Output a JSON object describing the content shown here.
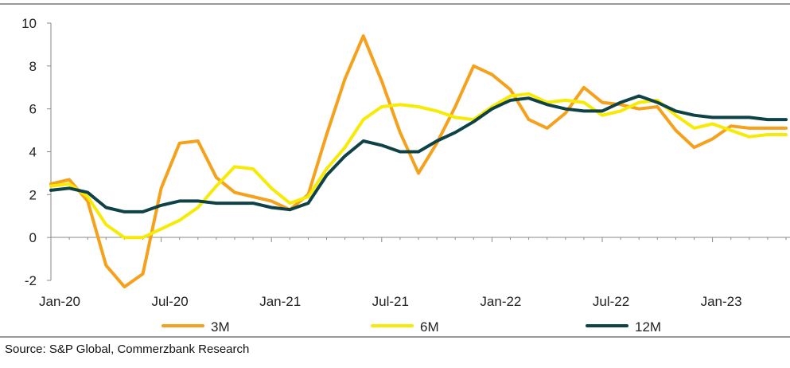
{
  "chart_data": {
    "type": "line",
    "title": "",
    "xlabel": "",
    "ylabel": "",
    "ylim": [
      -2,
      10
    ],
    "yticks": [
      -2,
      0,
      2,
      4,
      6,
      8,
      10
    ],
    "x_start": "Jan-20",
    "x_ticks": [
      "Jan-20",
      "Jul-20",
      "Jan-21",
      "Jul-21",
      "Jan-22",
      "Jul-22",
      "Jan-23"
    ],
    "x": [
      "Jan-20",
      "Feb-20",
      "Mar-20",
      "Apr-20",
      "May-20",
      "Jun-20",
      "Jul-20",
      "Aug-20",
      "Sep-20",
      "Oct-20",
      "Nov-20",
      "Dec-20",
      "Jan-21",
      "Feb-21",
      "Mar-21",
      "Apr-21",
      "May-21",
      "Jun-21",
      "Jul-21",
      "Aug-21",
      "Sep-21",
      "Oct-21",
      "Nov-21",
      "Dec-21",
      "Jan-22",
      "Feb-22",
      "Mar-22",
      "Apr-22",
      "May-22",
      "Jun-22",
      "Jul-22",
      "Aug-22",
      "Sep-22",
      "Oct-22",
      "Nov-22",
      "Dec-22",
      "Jan-23",
      "Feb-23",
      "Mar-23",
      "Apr-23",
      "May-23"
    ],
    "grid": false,
    "legend_position": "bottom",
    "series": [
      {
        "name": "3M",
        "color": "#F5A11C",
        "values": [
          2.5,
          2.7,
          1.7,
          -1.3,
          -2.3,
          -1.7,
          2.3,
          4.4,
          4.5,
          2.8,
          2.1,
          1.9,
          1.7,
          1.3,
          2.0,
          4.8,
          7.4,
          9.4,
          7.3,
          4.9,
          3.0,
          4.4,
          6.1,
          8.0,
          7.6,
          6.9,
          5.5,
          5.1,
          5.8,
          7.0,
          6.3,
          6.2,
          6.0,
          6.1,
          5.0,
          4.2,
          4.6,
          5.2,
          5.1,
          5.1,
          5.1
        ]
      },
      {
        "name": "6M",
        "color": "#F7EA05",
        "values": [
          2.4,
          2.5,
          1.9,
          0.6,
          0.0,
          0.0,
          0.4,
          0.8,
          1.4,
          2.4,
          3.3,
          3.2,
          2.3,
          1.6,
          1.9,
          3.2,
          4.2,
          5.5,
          6.1,
          6.2,
          6.1,
          5.9,
          5.6,
          5.5,
          6.1,
          6.6,
          6.7,
          6.3,
          6.4,
          6.3,
          5.7,
          5.9,
          6.3,
          6.4,
          5.7,
          5.1,
          5.3,
          5.0,
          4.7,
          4.8,
          4.8
        ]
      },
      {
        "name": "12M",
        "color": "#0E4247",
        "values": [
          2.2,
          2.3,
          2.1,
          1.4,
          1.2,
          1.2,
          1.5,
          1.7,
          1.7,
          1.6,
          1.6,
          1.6,
          1.4,
          1.3,
          1.6,
          2.9,
          3.8,
          4.5,
          4.3,
          4.0,
          4.0,
          4.5,
          4.9,
          5.4,
          6.0,
          6.4,
          6.5,
          6.2,
          6.0,
          5.9,
          5.9,
          6.3,
          6.6,
          6.3,
          5.9,
          5.7,
          5.6,
          5.6,
          5.6,
          5.5,
          5.5
        ]
      }
    ]
  },
  "source_text": "Source: S&P Global, Commerzbank Research"
}
